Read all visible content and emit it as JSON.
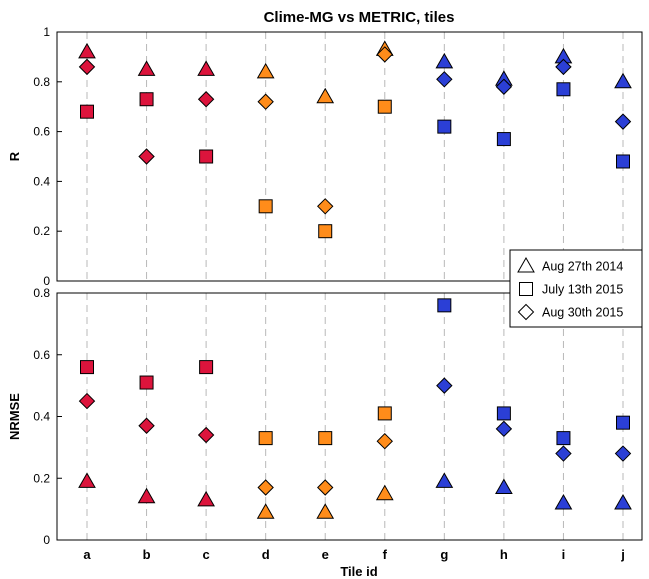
{
  "colors": {
    "red": "#dc143c",
    "orange": "#ff8c1a",
    "blue": "#2b3fd6",
    "grid": "#b8b8b8"
  },
  "chart_data": {
    "type": "scatter",
    "title": "Clime-MG vs METRIC, tiles",
    "xlabel": "Tile id",
    "categories": [
      "a",
      "b",
      "c",
      "d",
      "e",
      "f",
      "g",
      "h",
      "i",
      "j"
    ],
    "category_colors": [
      "red",
      "red",
      "red",
      "orange",
      "orange",
      "orange",
      "blue",
      "blue",
      "blue",
      "blue"
    ],
    "grid": true,
    "legend_position": "right, between panels",
    "series": [
      {
        "name": "Aug 27th 2014",
        "marker": "triangle-up-icon"
      },
      {
        "name": "July 13th 2015",
        "marker": "square-icon"
      },
      {
        "name": "Aug 30th 2015",
        "marker": "diamond-icon"
      }
    ],
    "panels": [
      {
        "ylabel": "R",
        "ylim": [
          0,
          1
        ],
        "yticks": [
          0,
          0.2,
          0.4,
          0.6,
          0.8,
          1
        ],
        "ytick_labels": [
          "0",
          "0.2",
          "0.4",
          "0.6",
          "0.8",
          "1"
        ],
        "values": [
          [
            0.92,
            0.85,
            0.85,
            0.84,
            0.74,
            0.93,
            0.88,
            0.81,
            0.9,
            0.8
          ],
          [
            0.68,
            0.73,
            0.5,
            0.3,
            0.2,
            0.7,
            0.62,
            0.57,
            0.77,
            0.48
          ],
          [
            0.86,
            0.5,
            0.73,
            0.72,
            0.3,
            0.91,
            0.81,
            0.78,
            0.86,
            0.64
          ]
        ]
      },
      {
        "ylabel": "NRMSE",
        "ylim": [
          0,
          0.8
        ],
        "yticks": [
          0,
          0.2,
          0.4,
          0.6,
          0.8
        ],
        "ytick_labels": [
          "0",
          "0.2",
          "0.4",
          "0.6",
          "0.8"
        ],
        "values": [
          [
            0.19,
            0.14,
            0.13,
            0.09,
            0.09,
            0.15,
            0.19,
            0.17,
            0.12,
            0.12
          ],
          [
            0.56,
            0.51,
            0.56,
            0.33,
            0.33,
            0.41,
            0.76,
            0.41,
            0.33,
            0.38
          ],
          [
            0.45,
            0.37,
            0.34,
            0.17,
            0.17,
            0.32,
            0.5,
            0.36,
            0.28,
            0.28
          ]
        ]
      }
    ]
  }
}
